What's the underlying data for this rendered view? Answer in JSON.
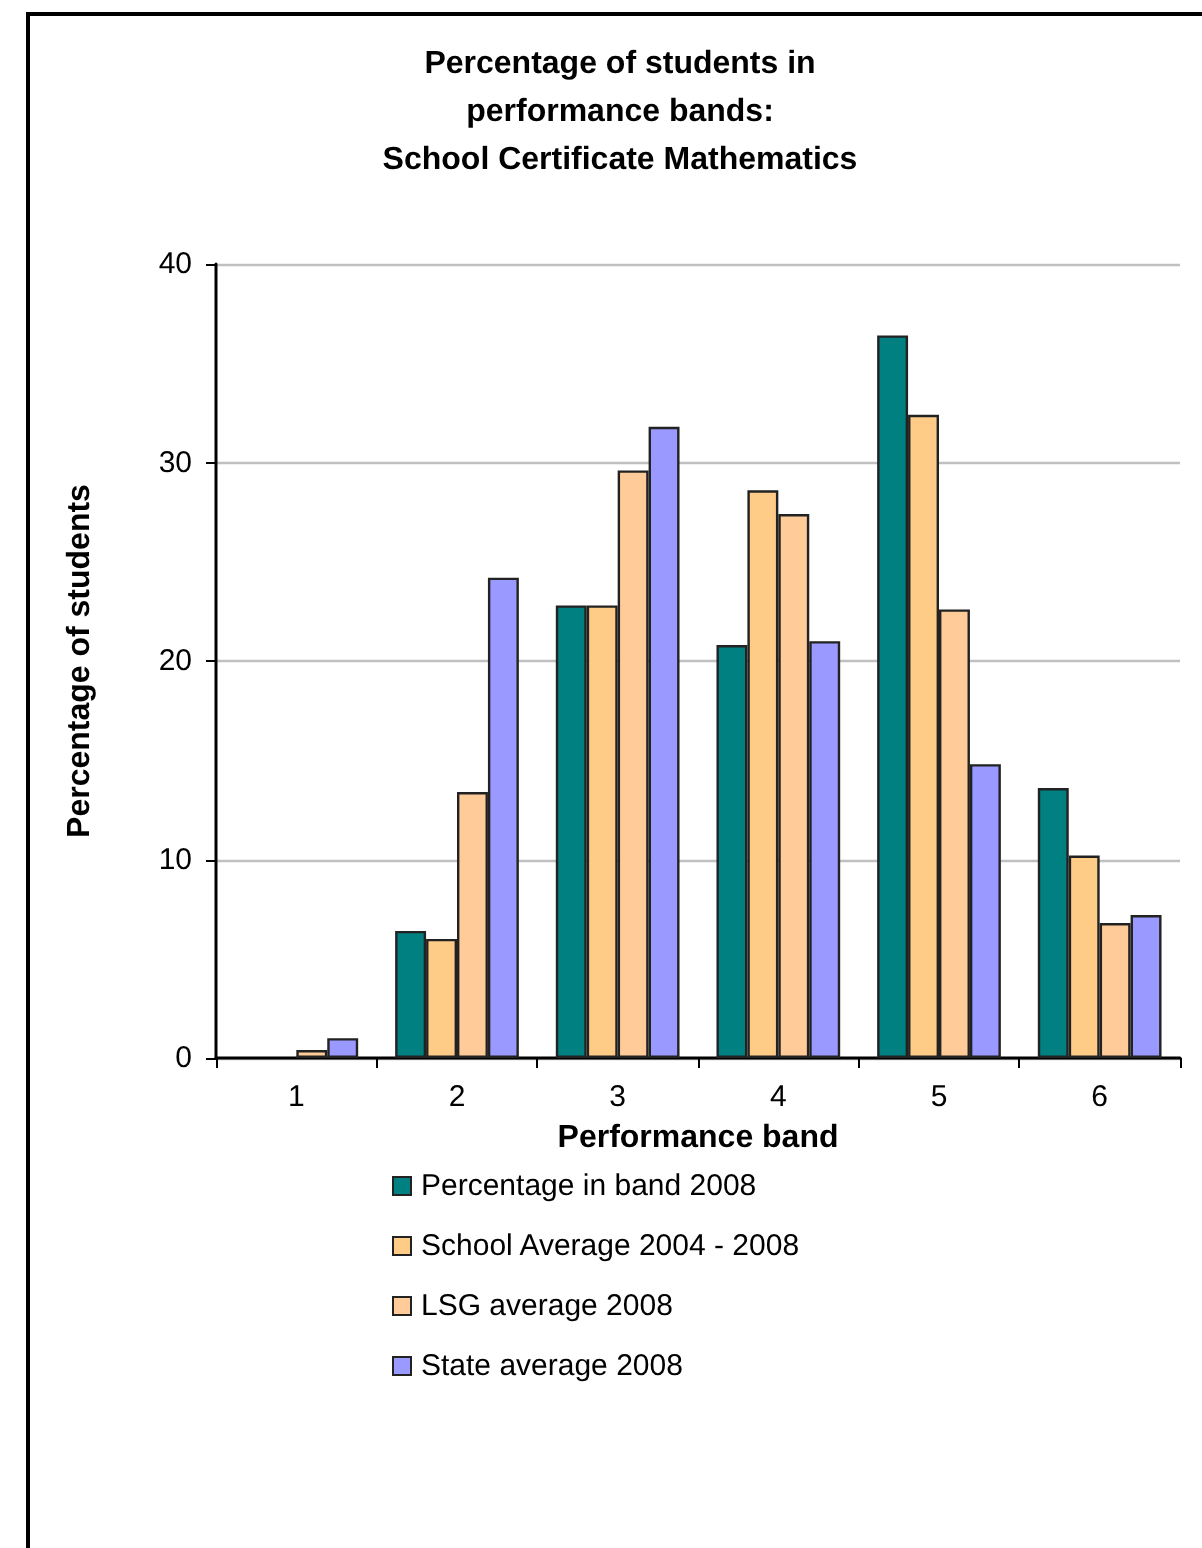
{
  "chart_data": {
    "type": "bar",
    "title": "Percentage of students in\nperformance bands:\nSchool Certificate Mathematics",
    "xlabel": "Performance band",
    "ylabel": "Percentage of students",
    "categories": [
      "1",
      "2",
      "3",
      "4",
      "5",
      "6"
    ],
    "series": [
      {
        "name": "Percentage in band 2008",
        "color": "#008080",
        "values": [
          0,
          6.4,
          22.8,
          20.8,
          36.4,
          13.6
        ]
      },
      {
        "name": "School Average 2004 - 2008",
        "color": "#ffcc88",
        "values": [
          0,
          6.0,
          22.8,
          28.6,
          32.4,
          10.2
        ]
      },
      {
        "name": "LSG average 2008",
        "color": "#ffcc99",
        "values": [
          0.4,
          13.4,
          29.6,
          27.4,
          22.6,
          6.8
        ]
      },
      {
        "name": "State average 2008",
        "color": "#9999ff",
        "values": [
          1.0,
          24.2,
          31.8,
          21.0,
          14.8,
          7.2
        ]
      }
    ],
    "ylim": [
      0,
      40
    ],
    "yticks": [
      0,
      10,
      20,
      30,
      40
    ],
    "grid": "y",
    "legend": "bottom"
  }
}
